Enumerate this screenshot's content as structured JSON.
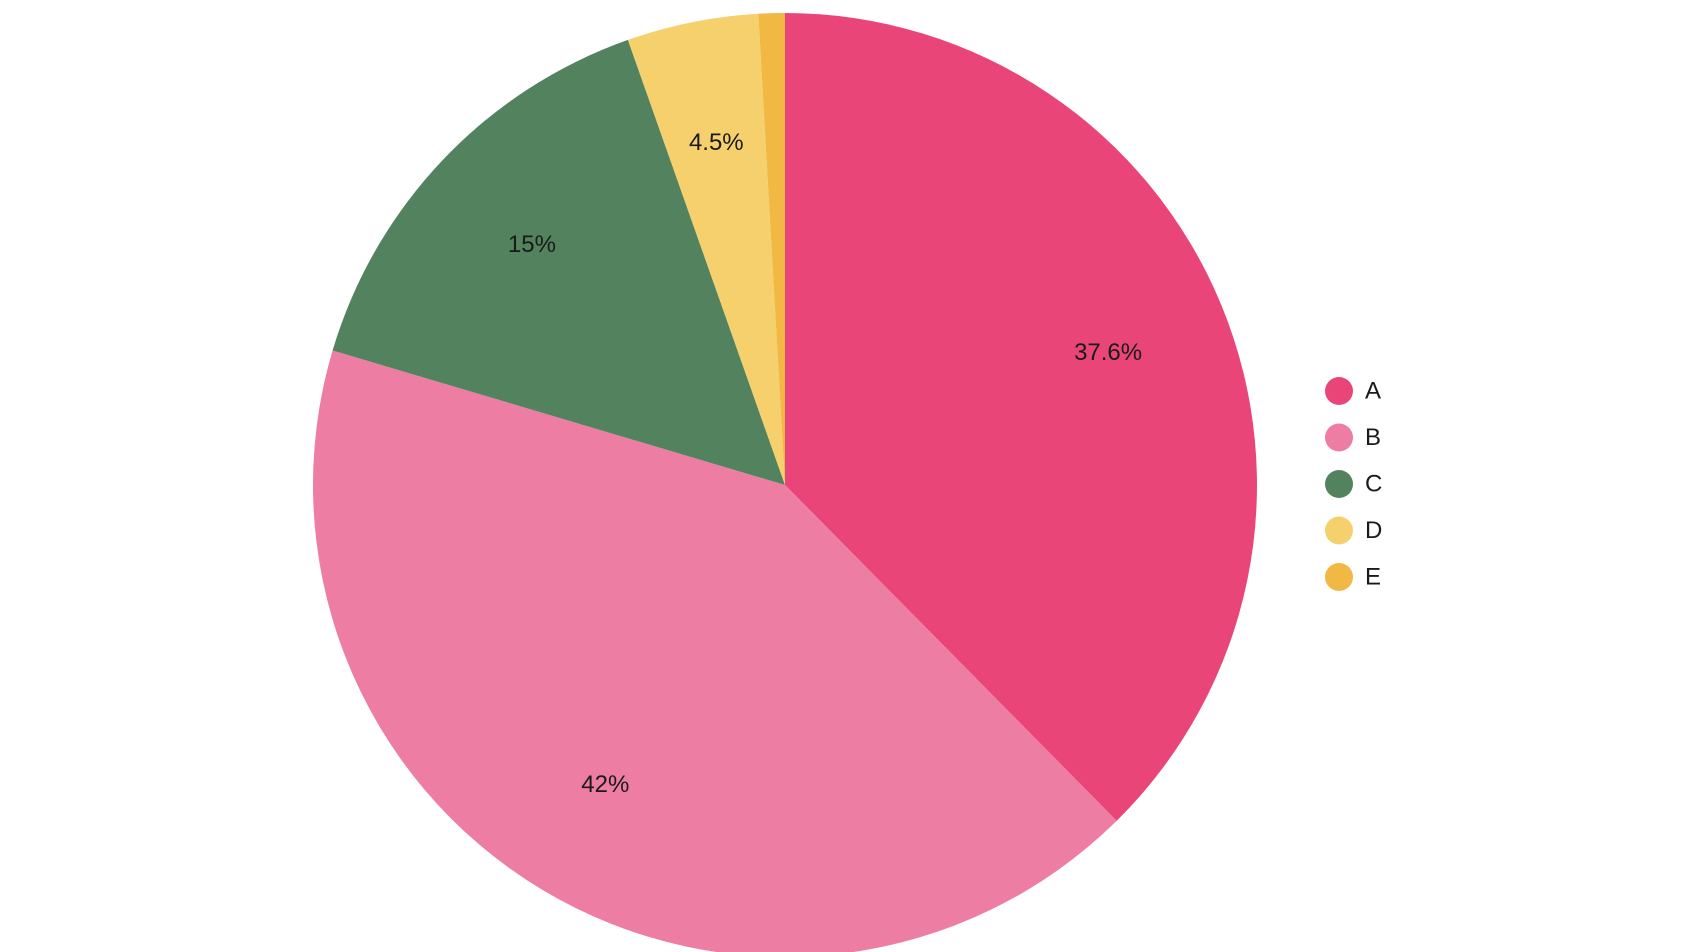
{
  "chart_data": {
    "type": "pie",
    "title": "",
    "legend_position": "right",
    "start_angle_deg": 0,
    "direction": "clockwise",
    "slices": [
      {
        "label": "A",
        "value": 37.6,
        "display": "37.6%",
        "color": "#EA4579"
      },
      {
        "label": "B",
        "value": 42.0,
        "display": "42%",
        "color": "#EE7DA3"
      },
      {
        "label": "C",
        "value": 15.0,
        "display": "15%",
        "color": "#52835E"
      },
      {
        "label": "D",
        "value": 4.5,
        "display": "4.5%",
        "color": "#F5D06C"
      },
      {
        "label": "E",
        "value": 0.9,
        "display": "",
        "color": "#F1B944"
      }
    ]
  }
}
